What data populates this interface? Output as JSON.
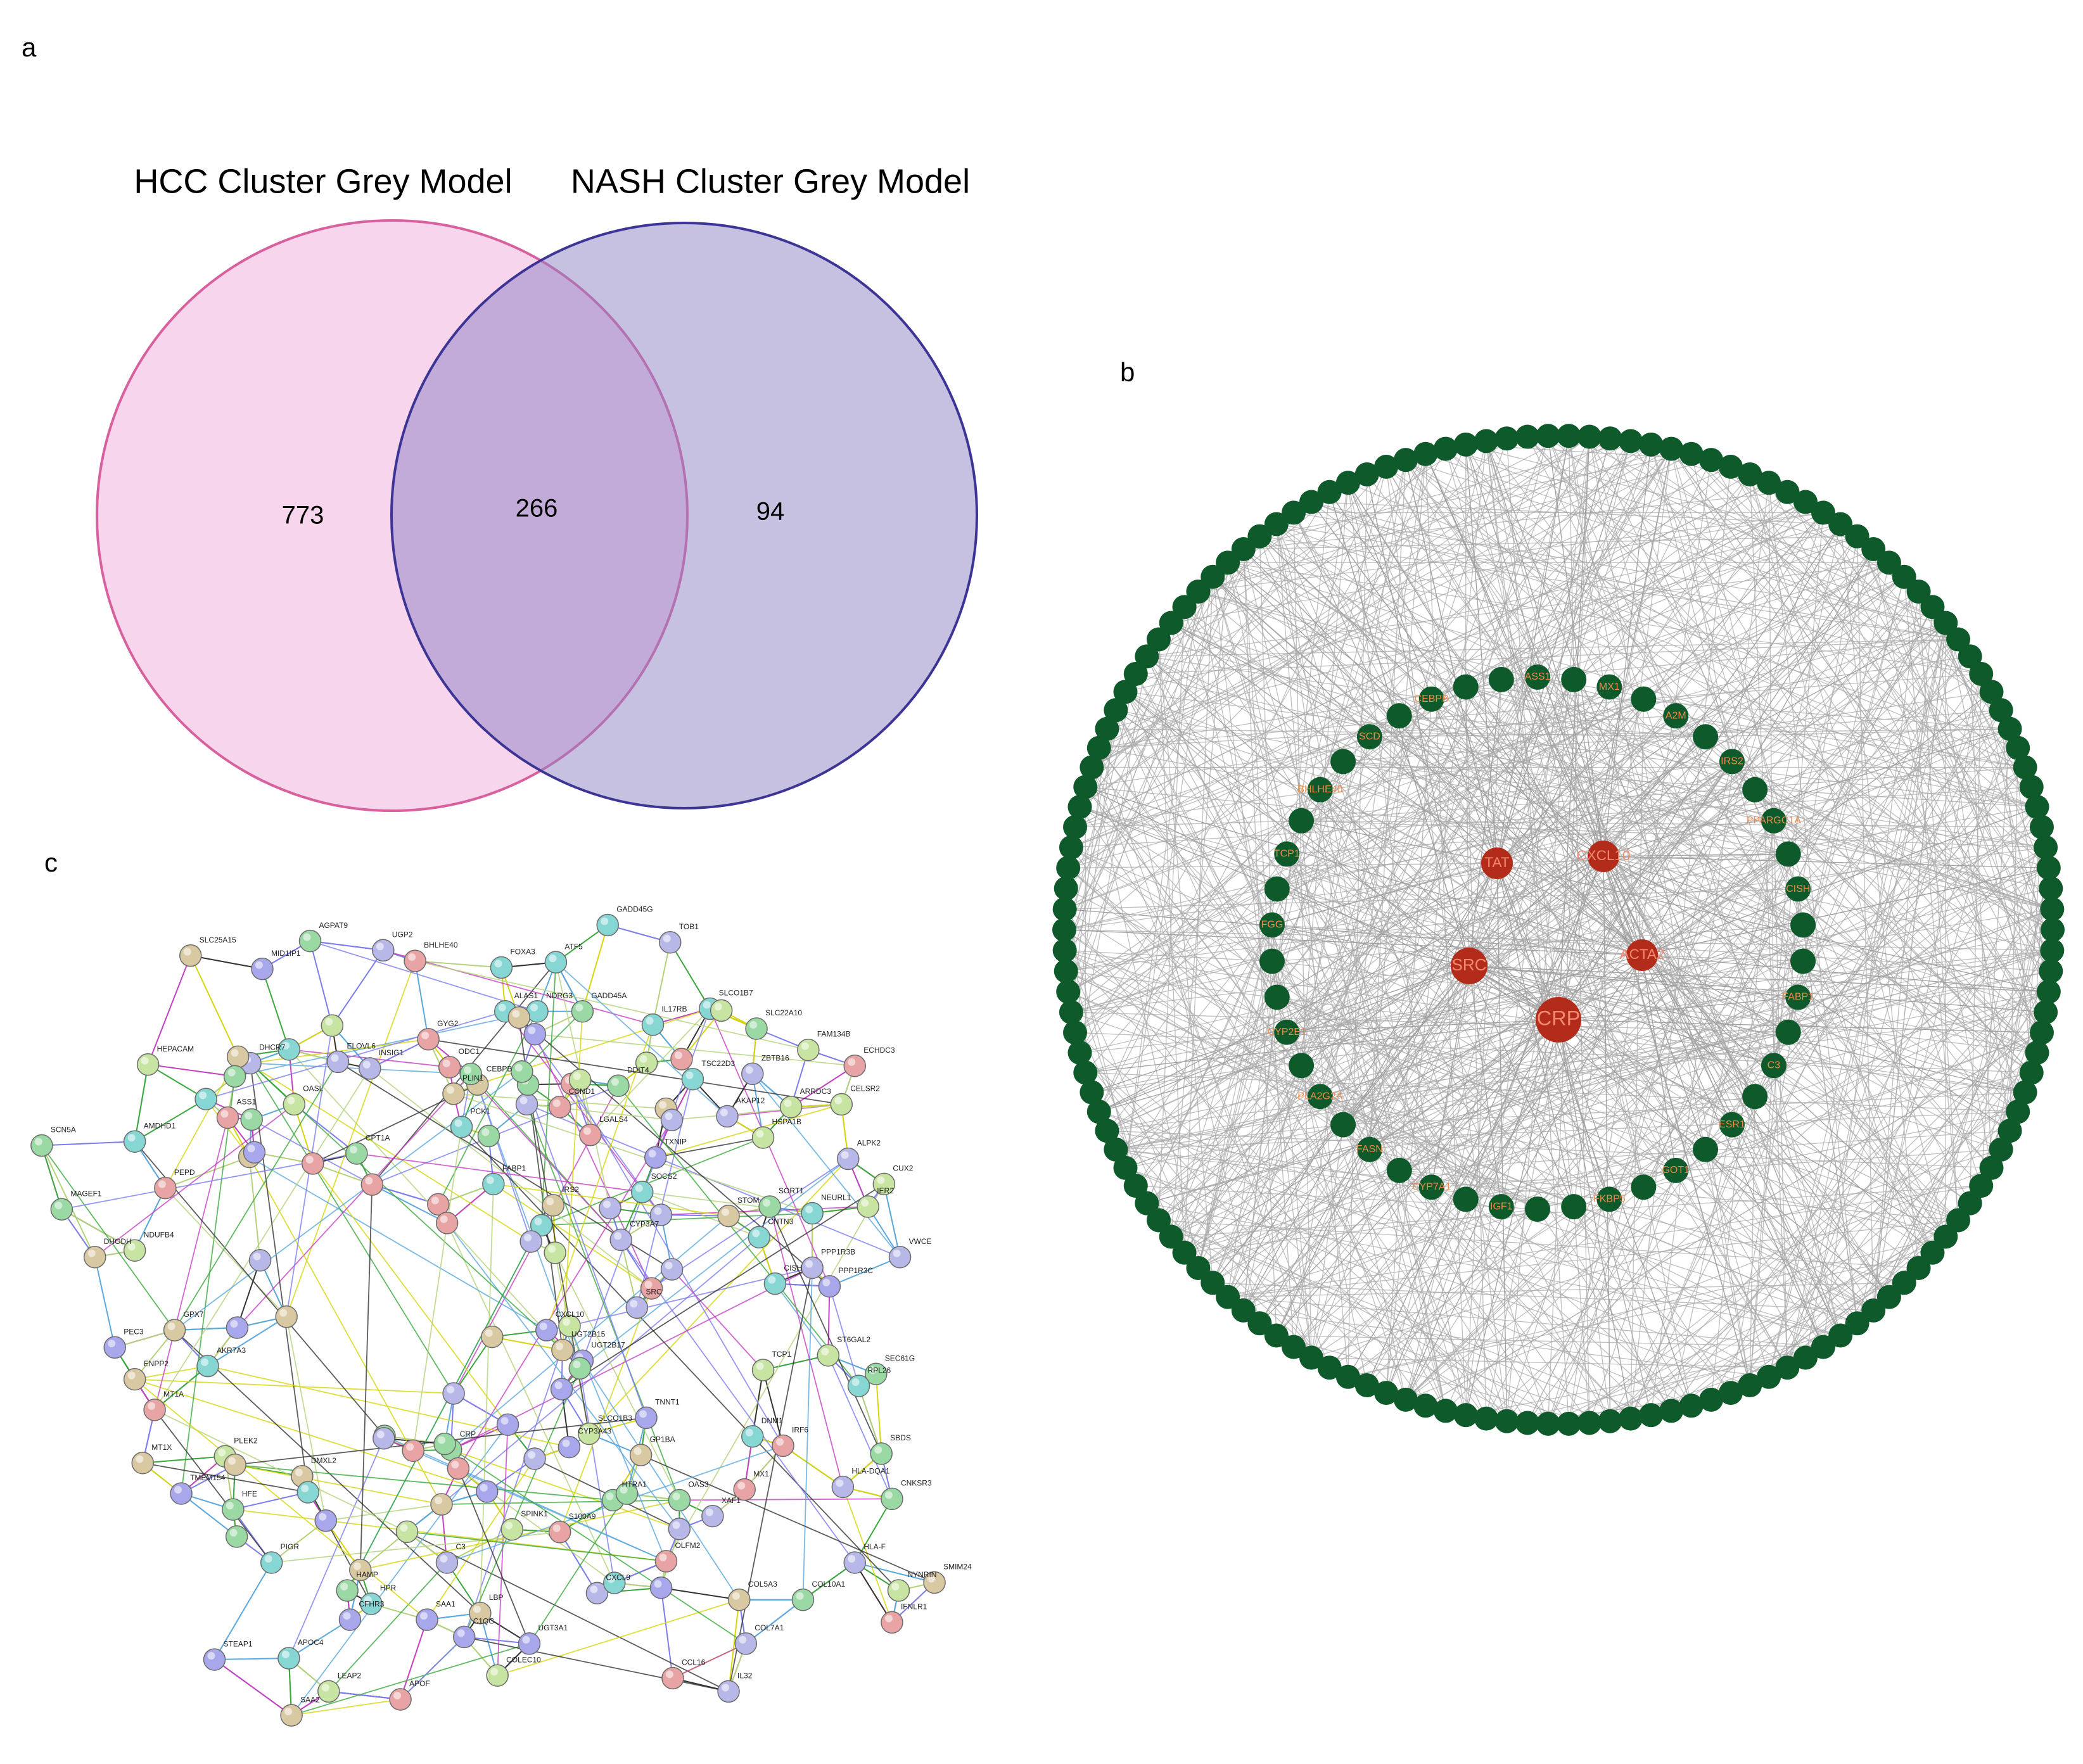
{
  "panels": {
    "a": {
      "label": "a",
      "venn": {
        "titles": [
          "HCC Cluster Grey Model",
          "NASH Cluster Grey Model"
        ],
        "counts": [
          773,
          266,
          94
        ]
      }
    },
    "b": {
      "label": "b",
      "hub_nodes": [
        "TAT",
        "CXCL10",
        "SRC",
        "ACTA2",
        "CRP"
      ],
      "ring_nodes": [
        "ASS1",
        "MX1",
        "A2M",
        "IRS2",
        "PPARGC1A",
        "CISH",
        "FABP1",
        "C3",
        "ESR1",
        "GOT1",
        "FKBP5",
        "IGF1",
        "CYP7A1",
        "FASN",
        "PLA2G2A",
        "CYP2E1",
        "FGG",
        "TCP1",
        "BHLHE40",
        "SCD",
        "CEBPB"
      ]
    },
    "c": {
      "label": "c",
      "nodes": [
        "GADD45G",
        "TOB1",
        "AGPAT9",
        "UGP2",
        "BHLHE40",
        "FOXA3",
        "ATF5",
        "SLC25A15",
        "MID1IP1",
        "ALAS1",
        "NDRG3",
        "GADD45A",
        "IL17RB",
        "SLCO1B7",
        "SLC22A10",
        "HEPACAM",
        "DHCR7",
        "ELOVL6",
        "GYG2",
        "INSIG1",
        "FAM134B",
        "ECHDC3",
        "ZBTB16",
        "CEBPB",
        "ODC1",
        "TSC22D3",
        "DDIT4",
        "ARRDC3",
        "CELSR2",
        "AKAP12",
        "SCN5A",
        "AMDHD1",
        "ASS1",
        "OASL",
        "PLIN1",
        "CCND1",
        "LGALS4",
        "HSPA1B",
        "TXNIP",
        "CPT1A",
        "PCK1",
        "ALPK2",
        "CUX2",
        "IER2",
        "MAGEF1",
        "PEPD",
        "FABP1",
        "SORT1",
        "STOM",
        "NEURL1",
        "SOCS2",
        "IRS2",
        "CNTN3",
        "CYP3A7",
        "DHODH",
        "NDUFB4",
        "SRC",
        "CISH",
        "PPP1R3B",
        "VWCE",
        "PPP1R3C",
        "CXCL10",
        "UGT2B15",
        "UGT2B17",
        "PEC3",
        "ENPP2",
        "ST6GAL2",
        "SEC61G",
        "MT1A",
        "RPL26",
        "GPX7",
        "AKR7A3",
        "TCP1",
        "DNM1",
        "IRF6",
        "SBDS",
        "MT1X",
        "PLEK2",
        "TMEM154",
        "C3",
        "CRP",
        "HFE",
        "CNKSR3",
        "MX1",
        "HLA-DQA1",
        "HLA-F",
        "PIGR",
        "COL5A3",
        "NYNRIN",
        "SMIM24",
        "COL10A1",
        "IFNLR1",
        "HTRA1",
        "OAS3",
        "OLFM2",
        "XAF1",
        "S100A9",
        "SPINK1",
        "CXCL9",
        "HAMP",
        "HPR",
        "CFHR3",
        "SAA1",
        "LBP",
        "C1QC",
        "STEAP1",
        "APOC4",
        "UGT3A1",
        "CCL16",
        "COL7A1",
        "IL32",
        "LEAP2",
        "APOF",
        "COLEC10",
        "SAA2",
        "DMXL2",
        "GP1BA",
        "TNNT1",
        "SLCO1B3",
        "CYP3A43"
      ]
    }
  }
}
